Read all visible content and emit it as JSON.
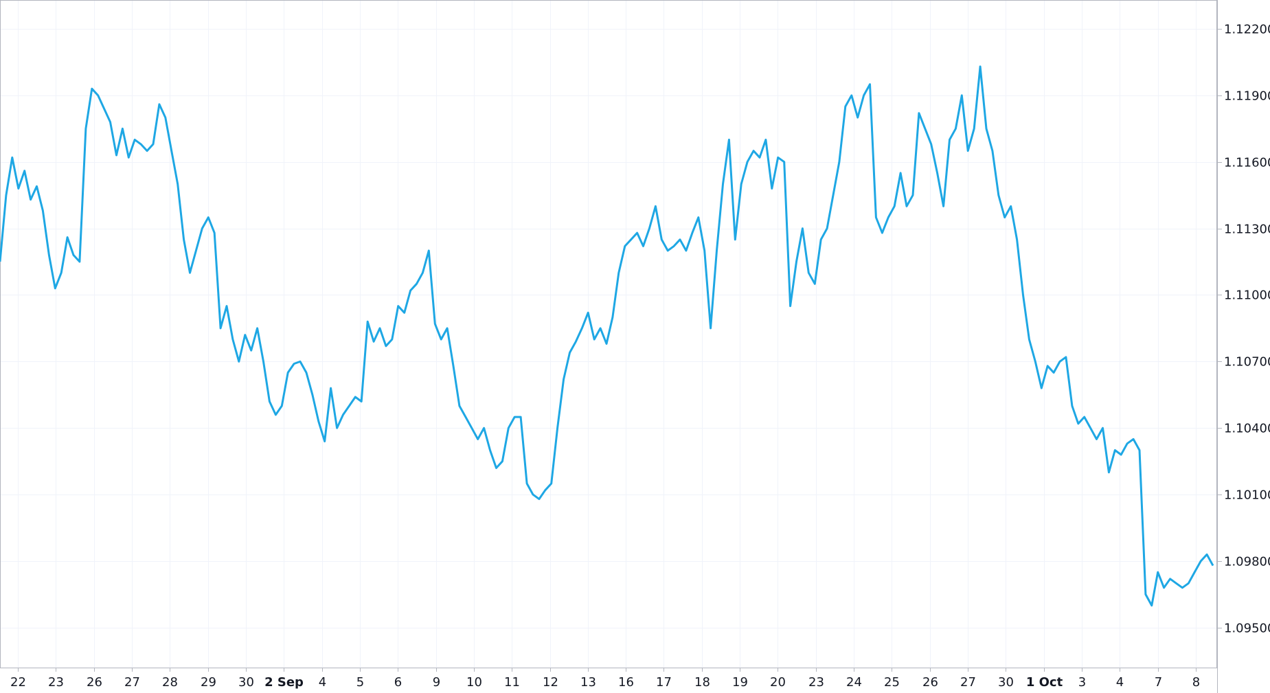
{
  "chart_data": {
    "type": "line",
    "line_color": "#1ea7e4",
    "grid": true,
    "grid_color": "#f0f3fa",
    "y_axis_position": "right",
    "ylim": [
      1.0932,
      1.1233
    ],
    "y_ticks": [
      "1.12200",
      "1.11900",
      "1.11600",
      "1.11300",
      "1.11000",
      "1.10700",
      "1.10400",
      "1.10100",
      "1.09800",
      "1.09500"
    ],
    "x_ticks": [
      {
        "label": "22",
        "major": false
      },
      {
        "label": "23",
        "major": false
      },
      {
        "label": "26",
        "major": false
      },
      {
        "label": "27",
        "major": false
      },
      {
        "label": "28",
        "major": false
      },
      {
        "label": "29",
        "major": false
      },
      {
        "label": "30",
        "major": false
      },
      {
        "label": "2 Sep",
        "major": true
      },
      {
        "label": "4",
        "major": false
      },
      {
        "label": "5",
        "major": false
      },
      {
        "label": "6",
        "major": false
      },
      {
        "label": "9",
        "major": false
      },
      {
        "label": "10",
        "major": false
      },
      {
        "label": "11",
        "major": false
      },
      {
        "label": "12",
        "major": false
      },
      {
        "label": "13",
        "major": false
      },
      {
        "label": "16",
        "major": false
      },
      {
        "label": "17",
        "major": false
      },
      {
        "label": "18",
        "major": false
      },
      {
        "label": "19",
        "major": false
      },
      {
        "label": "20",
        "major": false
      },
      {
        "label": "23",
        "major": false
      },
      {
        "label": "24",
        "major": false
      },
      {
        "label": "25",
        "major": false
      },
      {
        "label": "26",
        "major": false
      },
      {
        "label": "27",
        "major": false
      },
      {
        "label": "30",
        "major": false
      },
      {
        "label": "1 Oct",
        "major": true
      },
      {
        "label": "3",
        "major": false
      },
      {
        "label": "4",
        "major": false
      },
      {
        "label": "7",
        "major": false
      },
      {
        "label": "8",
        "major": false
      }
    ],
    "series": [
      {
        "values": [
          1.1115,
          1.1145,
          1.1162,
          1.1148,
          1.1156,
          1.1143,
          1.1149,
          1.1138,
          1.1118,
          1.1103,
          1.111,
          1.1126,
          1.1118,
          1.1115,
          1.1175,
          1.1193,
          1.119,
          1.1184,
          1.1178,
          1.1163,
          1.1175,
          1.1162,
          1.117,
          1.1168,
          1.1165,
          1.1168,
          1.1186,
          1.118,
          1.1165,
          1.115,
          1.1125,
          1.111,
          1.112,
          1.113,
          1.1135,
          1.1128,
          1.1085,
          1.1095,
          1.108,
          1.107,
          1.1082,
          1.1075,
          1.1085,
          1.107,
          1.1052,
          1.1046,
          1.105,
          1.1065,
          1.1069,
          1.107,
          1.1065,
          1.1055,
          1.1043,
          1.1034,
          1.1058,
          1.104,
          1.1046,
          1.105,
          1.1054,
          1.1052,
          1.1088,
          1.1079,
          1.1085,
          1.1077,
          1.108,
          1.1095,
          1.1092,
          1.1102,
          1.1105,
          1.111,
          1.112,
          1.1087,
          1.108,
          1.1085,
          1.1068,
          1.105,
          1.1045,
          1.104,
          1.1035,
          1.104,
          1.103,
          1.1022,
          1.1025,
          1.104,
          1.1045,
          1.1045,
          1.1015,
          1.101,
          1.1008,
          1.1012,
          1.1015,
          1.104,
          1.1062,
          1.1074,
          1.1079,
          1.1085,
          1.1092,
          1.108,
          1.1085,
          1.1078,
          1.109,
          1.111,
          1.1122,
          1.1125,
          1.1128,
          1.1122,
          1.113,
          1.114,
          1.1125,
          1.112,
          1.1122,
          1.1125,
          1.112,
          1.1128,
          1.1135,
          1.112,
          1.1085,
          1.112,
          1.115,
          1.117,
          1.1125,
          1.115,
          1.116,
          1.1165,
          1.1162,
          1.117,
          1.1148,
          1.1162,
          1.116,
          1.1095,
          1.1115,
          1.113,
          1.111,
          1.1105,
          1.1125,
          1.113,
          1.1145,
          1.116,
          1.1185,
          1.119,
          1.118,
          1.119,
          1.1195,
          1.1135,
          1.1128,
          1.1135,
          1.114,
          1.1155,
          1.114,
          1.1145,
          1.1182,
          1.1175,
          1.1168,
          1.1155,
          1.114,
          1.117,
          1.1175,
          1.119,
          1.1165,
          1.1175,
          1.1203,
          1.1175,
          1.1165,
          1.1145,
          1.1135,
          1.114,
          1.1125,
          1.11,
          1.108,
          1.107,
          1.1058,
          1.1068,
          1.1065,
          1.107,
          1.1072,
          1.105,
          1.1042,
          1.1045,
          1.104,
          1.1035,
          1.104,
          1.102,
          1.103,
          1.1028,
          1.1033,
          1.1035,
          1.103,
          1.0965,
          1.096,
          1.0975,
          1.0968,
          1.0972,
          1.097,
          1.0968,
          1.097,
          1.0975,
          1.098,
          1.0983,
          1.0978
        ]
      }
    ]
  }
}
